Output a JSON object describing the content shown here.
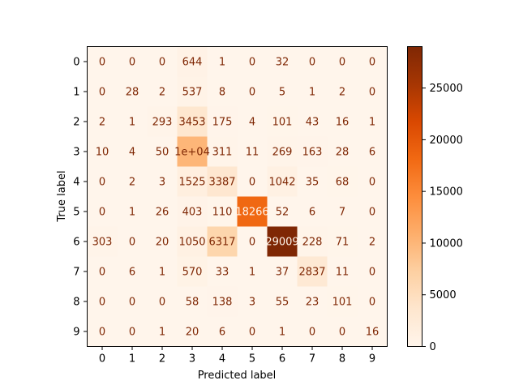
{
  "chart_data": {
    "type": "heatmap",
    "title": "",
    "xlabel": "Predicted label",
    "ylabel": "True label",
    "x_categories": [
      "0",
      "1",
      "2",
      "3",
      "4",
      "5",
      "6",
      "7",
      "8",
      "9"
    ],
    "y_categories": [
      "0",
      "1",
      "2",
      "3",
      "4",
      "5",
      "6",
      "7",
      "8",
      "9"
    ],
    "matrix": [
      [
        0,
        0,
        0,
        644,
        1,
        0,
        32,
        0,
        0,
        0
      ],
      [
        0,
        28,
        2,
        537,
        8,
        0,
        5,
        1,
        2,
        0
      ],
      [
        2,
        1,
        293,
        3453,
        175,
        4,
        101,
        43,
        16,
        1
      ],
      [
        10,
        4,
        50,
        10000,
        311,
        11,
        269,
        163,
        28,
        6
      ],
      [
        0,
        2,
        3,
        1525,
        3387,
        0,
        1042,
        35,
        68,
        0
      ],
      [
        0,
        1,
        26,
        403,
        110,
        18266,
        52,
        6,
        7,
        0
      ],
      [
        303,
        0,
        20,
        1050,
        6317,
        0,
        29009,
        228,
        71,
        2
      ],
      [
        0,
        6,
        1,
        570,
        33,
        1,
        37,
        2837,
        11,
        0
      ],
      [
        0,
        0,
        0,
        58,
        138,
        3,
        55,
        23,
        101,
        0
      ],
      [
        0,
        0,
        1,
        20,
        6,
        0,
        1,
        0,
        0,
        16
      ]
    ],
    "cell_labels": [
      [
        "0",
        "0",
        "0",
        "644",
        "1",
        "0",
        "32",
        "0",
        "0",
        "0"
      ],
      [
        "0",
        "28",
        "2",
        "537",
        "8",
        "0",
        "5",
        "1",
        "2",
        "0"
      ],
      [
        "2",
        "1",
        "293",
        "3453",
        "175",
        "4",
        "101",
        "43",
        "16",
        "1"
      ],
      [
        "10",
        "4",
        "50",
        "1e+04",
        "311",
        "11",
        "269",
        "163",
        "28",
        "6"
      ],
      [
        "0",
        "2",
        "3",
        "1525",
        "3387",
        "0",
        "1042",
        "35",
        "68",
        "0"
      ],
      [
        "0",
        "1",
        "26",
        "403",
        "110",
        "18266",
        "52",
        "6",
        "7",
        "0"
      ],
      [
        "303",
        "0",
        "20",
        "1050",
        "6317",
        "0",
        "29009",
        "228",
        "71",
        "2"
      ],
      [
        "0",
        "6",
        "1",
        "570",
        "33",
        "1",
        "37",
        "2837",
        "11",
        "0"
      ],
      [
        "0",
        "0",
        "0",
        "58",
        "138",
        "3",
        "55",
        "23",
        "101",
        "0"
      ],
      [
        "0",
        "0",
        "1",
        "20",
        "6",
        "0",
        "1",
        "0",
        "0",
        "16"
      ]
    ],
    "colorbar": {
      "colormap": "Oranges",
      "range": [
        0,
        29009
      ],
      "ticks": [
        0,
        5000,
        10000,
        15000,
        20000,
        25000
      ],
      "tick_labels": [
        "0",
        "5000",
        "10000",
        "15000",
        "20000",
        "25000"
      ]
    },
    "colors": {
      "low": "#fff5eb",
      "high": "#7f2704",
      "text_on_light": "#7f2704",
      "text_on_dark": "#fff5eb"
    },
    "grid": false
  }
}
